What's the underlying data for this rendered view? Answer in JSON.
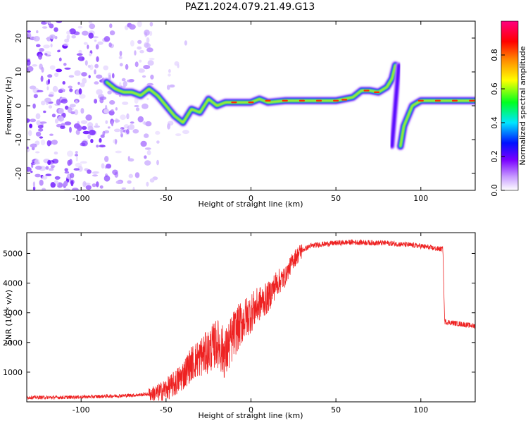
{
  "figure": {
    "title": "PAZ1.2024.079.21.49.G13"
  },
  "chart_data": [
    {
      "type": "heatmap",
      "xlabel": "Height of straight line (km)",
      "ylabel": "Frequency (Hz)",
      "xlim": [
        -132,
        132
      ],
      "ylim": [
        -25,
        25
      ],
      "x_ticks": [
        -100,
        -50,
        0,
        50,
        100
      ],
      "y_ticks": [
        -20,
        -10,
        0,
        10,
        20
      ],
      "colorbar": {
        "label": "Normalized spectral amplitude",
        "range": [
          0.0,
          1.0
        ],
        "ticks": [
          0.0,
          0.2,
          0.4,
          0.6,
          0.8
        ],
        "colors": [
          "#ffffff",
          "#7a00ff",
          "#0010ff",
          "#00e6ff",
          "#00ff20",
          "#ffff00",
          "#ff8000",
          "#ff0000",
          "#ff0080"
        ]
      },
      "ridge": {
        "x": [
          -85,
          -80,
          -75,
          -70,
          -65,
          -60,
          -55,
          -50,
          -45,
          -40,
          -35,
          -30,
          -25,
          -20,
          -15,
          -10,
          -5,
          0,
          5,
          10,
          20,
          30,
          40,
          50,
          55,
          60,
          65,
          70,
          75,
          80,
          83,
          85
        ],
        "y": [
          7,
          5,
          4,
          4,
          3,
          5,
          3,
          0,
          -3,
          -5,
          -1,
          -2,
          2,
          0,
          1,
          1,
          1,
          1,
          2,
          1,
          1.5,
          1.5,
          1.5,
          1.5,
          2,
          2.5,
          4.5,
          4.5,
          4,
          5.5,
          8,
          12
        ]
      },
      "ridge_after": {
        "x": [
          88,
          90,
          95,
          100,
          110,
          120,
          132
        ],
        "y": [
          -12,
          -6,
          0,
          1.5,
          1.5,
          1.5,
          1.5
        ]
      },
      "dispersed_segment": {
        "x": [
          83,
          85,
          87
        ],
        "y_range": [
          -12,
          12
        ]
      }
    },
    {
      "type": "line",
      "xlabel": "Height of straight line (km)",
      "ylabel": "SNR (10 * v/v)",
      "xlim": [
        -132,
        132
      ],
      "ylim": [
        0,
        5700
      ],
      "x_ticks": [
        -100,
        -50,
        0,
        50,
        100
      ],
      "y_ticks": [
        1000,
        2000,
        3000,
        4000,
        5000
      ],
      "line_color": "#ee2222",
      "series": [
        {
          "x": [
            -132,
            -110,
            -90,
            -70,
            -60,
            -55,
            -50,
            -45,
            -40,
            -35,
            -30,
            -25,
            -20,
            -15,
            -10,
            -5,
            0,
            5,
            10,
            15,
            20,
            25,
            30,
            35,
            40,
            50,
            60,
            70,
            80,
            90,
            100,
            105,
            110,
            113,
            114,
            120,
            132
          ],
          "values": [
            150,
            150,
            180,
            220,
            260,
            300,
            420,
            600,
            900,
            1300,
            1500,
            1700,
            2000,
            1600,
            2300,
            2700,
            3000,
            3300,
            3500,
            4000,
            4200,
            4800,
            5100,
            5250,
            5300,
            5350,
            5380,
            5360,
            5350,
            5300,
            5250,
            5200,
            5150,
            5150,
            2700,
            2650,
            2550
          ]
        }
      ]
    }
  ]
}
